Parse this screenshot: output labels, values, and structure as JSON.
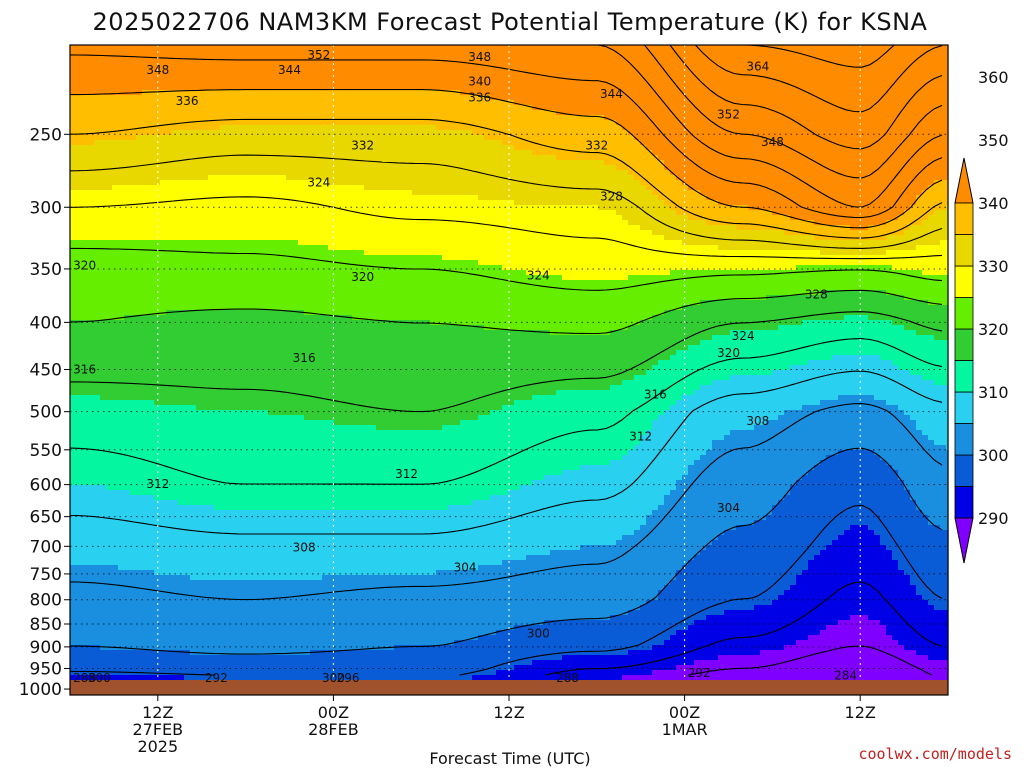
{
  "chart_data": {
    "type": "heatmap",
    "title": "2025022706 NAM3KM Forecast Potential Temperature (K) for KSNA",
    "xlabel": "Forecast Time (UTC)",
    "ylabel": "",
    "y_ticks": [
      250,
      300,
      350,
      400,
      450,
      500,
      550,
      600,
      650,
      700,
      750,
      800,
      850,
      900,
      950,
      1000
    ],
    "y_range": [
      200,
      1015
    ],
    "y_scale": "pressure (log)",
    "x_ticks": [
      {
        "hour": 6,
        "lines": [
          "12Z",
          "27FEB",
          "2025"
        ]
      },
      {
        "hour": 18,
        "lines": [
          "00Z",
          "28FEB"
        ]
      },
      {
        "hour": 30,
        "lines": [
          "12Z"
        ]
      },
      {
        "hour": 42,
        "lines": [
          "00Z",
          "1MAR"
        ]
      },
      {
        "hour": 54,
        "lines": [
          "12Z"
        ]
      }
    ],
    "x_range": [
      0,
      60
    ],
    "grid": true,
    "colorbar": {
      "labels": [
        290,
        300,
        310,
        320,
        330,
        340,
        350,
        360
      ],
      "colors": [
        "#7f00ff",
        "#0000e6",
        "#0a5bd6",
        "#1a8fe0",
        "#2ad0f0",
        "#05f6a0",
        "#32cd32",
        "#66ee00",
        "#ffff00",
        "#e8d800",
        "#ffbf00",
        "#ff8c00"
      ],
      "band_step": 5,
      "min": 285,
      "max": 365
    },
    "profiles": [
      {
        "hour": 0,
        "levels": [
          [
            1000,
            290
          ],
          [
            950,
            297
          ],
          [
            900,
            300
          ],
          [
            800,
            303
          ],
          [
            700,
            306
          ],
          [
            600,
            310
          ],
          [
            500,
            314
          ],
          [
            400,
            320
          ],
          [
            350,
            322
          ],
          [
            300,
            328
          ],
          [
            250,
            336
          ],
          [
            200,
            345
          ]
        ]
      },
      {
        "hour": 12,
        "levels": [
          [
            1000,
            292
          ],
          [
            950,
            298
          ],
          [
            900,
            301
          ],
          [
            800,
            304
          ],
          [
            700,
            307
          ],
          [
            600,
            312
          ],
          [
            500,
            315
          ],
          [
            400,
            319
          ],
          [
            350,
            323
          ],
          [
            300,
            327
          ],
          [
            250,
            334
          ],
          [
            200,
            346
          ]
        ]
      },
      {
        "hour": 24,
        "levels": [
          [
            1000,
            294
          ],
          [
            950,
            298
          ],
          [
            900,
            300
          ],
          [
            800,
            303
          ],
          [
            700,
            307
          ],
          [
            600,
            312
          ],
          [
            500,
            316
          ],
          [
            400,
            320
          ],
          [
            350,
            324
          ],
          [
            300,
            329
          ],
          [
            250,
            334
          ],
          [
            200,
            346
          ]
        ]
      },
      {
        "hour": 36,
        "levels": [
          [
            1000,
            288
          ],
          [
            950,
            292
          ],
          [
            900,
            297
          ],
          [
            800,
            302
          ],
          [
            700,
            305
          ],
          [
            600,
            309
          ],
          [
            500,
            313
          ],
          [
            400,
            321
          ],
          [
            350,
            326
          ],
          [
            300,
            330
          ],
          [
            250,
            338
          ],
          [
            200,
            348
          ]
        ]
      },
      {
        "hour": 46,
        "levels": [
          [
            1000,
            284
          ],
          [
            950,
            288
          ],
          [
            900,
            291
          ],
          [
            800,
            296
          ],
          [
            700,
            299
          ],
          [
            600,
            302
          ],
          [
            500,
            306
          ],
          [
            400,
            316
          ],
          [
            350,
            325
          ],
          [
            300,
            340
          ],
          [
            250,
            352
          ],
          [
            200,
            364
          ]
        ]
      },
      {
        "hour": 54,
        "levels": [
          [
            1000,
            283
          ],
          [
            950,
            285
          ],
          [
            900,
            288
          ],
          [
            800,
            291
          ],
          [
            700,
            294
          ],
          [
            600,
            297
          ],
          [
            500,
            303
          ],
          [
            400,
            314
          ],
          [
            350,
            324
          ],
          [
            300,
            348
          ],
          [
            250,
            358
          ],
          [
            200,
            366
          ]
        ]
      },
      {
        "hour": 60,
        "levels": [
          [
            1000,
            287
          ],
          [
            950,
            289
          ],
          [
            900,
            292
          ],
          [
            800,
            296
          ],
          [
            700,
            299
          ],
          [
            600,
            303
          ],
          [
            500,
            307
          ],
          [
            400,
            317
          ],
          [
            350,
            326
          ],
          [
            300,
            335
          ],
          [
            250,
            348
          ],
          [
            200,
            360
          ]
        ]
      }
    ],
    "contour_labels": [
      {
        "text": "352",
        "hour": 17,
        "p": 205
      },
      {
        "text": "348",
        "hour": 6,
        "p": 213
      },
      {
        "text": "344",
        "hour": 15,
        "p": 213
      },
      {
        "text": "348",
        "hour": 28,
        "p": 206
      },
      {
        "text": "340",
        "hour": 28,
        "p": 219
      },
      {
        "text": "336",
        "hour": 28,
        "p": 228
      },
      {
        "text": "336",
        "hour": 8,
        "p": 230
      },
      {
        "text": "344",
        "hour": 37,
        "p": 226
      },
      {
        "text": "364",
        "hour": 47,
        "p": 211
      },
      {
        "text": "352",
        "hour": 45,
        "p": 238
      },
      {
        "text": "348",
        "hour": 48,
        "p": 255
      },
      {
        "text": "332",
        "hour": 20,
        "p": 257
      },
      {
        "text": "332",
        "hour": 36,
        "p": 257
      },
      {
        "text": "328",
        "hour": 37,
        "p": 292
      },
      {
        "text": "324",
        "hour": 17,
        "p": 282
      },
      {
        "text": "320",
        "hour": 1,
        "p": 347
      },
      {
        "text": "320",
        "hour": 20,
        "p": 357
      },
      {
        "text": "324",
        "hour": 32,
        "p": 356
      },
      {
        "text": "328",
        "hour": 51,
        "p": 373
      },
      {
        "text": "324",
        "hour": 46,
        "p": 414
      },
      {
        "text": "320",
        "hour": 45,
        "p": 432
      },
      {
        "text": "316",
        "hour": 1,
        "p": 450
      },
      {
        "text": "316",
        "hour": 16,
        "p": 437
      },
      {
        "text": "316",
        "hour": 40,
        "p": 479
      },
      {
        "text": "312",
        "hour": 39,
        "p": 532
      },
      {
        "text": "308",
        "hour": 47,
        "p": 512
      },
      {
        "text": "312",
        "hour": 6,
        "p": 599
      },
      {
        "text": "312",
        "hour": 23,
        "p": 584
      },
      {
        "text": "304",
        "hour": 45,
        "p": 636
      },
      {
        "text": "308",
        "hour": 16,
        "p": 702
      },
      {
        "text": "304",
        "hour": 27,
        "p": 738
      },
      {
        "text": "300",
        "hour": 32,
        "p": 870
      },
      {
        "text": "292",
        "hour": 43,
        "p": 961
      },
      {
        "text": "284",
        "hour": 53,
        "p": 967
      },
      {
        "text": "300",
        "hour": 2,
        "p": 990
      },
      {
        "text": "292",
        "hour": 10,
        "p": 995
      },
      {
        "text": "300",
        "hour": 18,
        "p": 985
      },
      {
        "text": "296",
        "hour": 19,
        "p": 1006
      },
      {
        "text": "288",
        "hour": 34,
        "p": 996
      },
      {
        "text": "288",
        "hour": 1,
        "p": 1008
      }
    ]
  },
  "credit": "coolwx.com/models",
  "ground_color": "#a0522d"
}
